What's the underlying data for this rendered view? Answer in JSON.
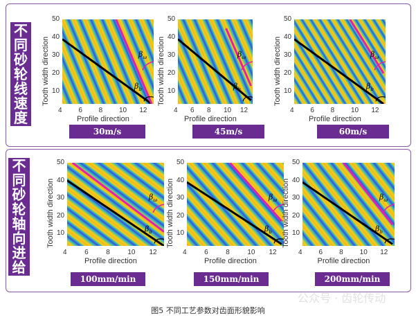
{
  "rows": [
    {
      "label": [
        "不",
        "同",
        "砂",
        "轮",
        "线",
        "速",
        "度"
      ],
      "plots": [
        {
          "condition": "30m/s",
          "black": [
            [
              4,
              39
            ],
            [
              12.8,
              3
            ]
          ],
          "magenta": [
            [
              9.3,
              50
            ],
            [
              12.8,
              3
            ]
          ]
        },
        {
          "condition": "45m/s",
          "black": [
            [
              4,
              39
            ],
            [
              12.8,
              5
            ]
          ],
          "magenta": [
            [
              9.8,
              45
            ],
            [
              12.8,
              13
            ]
          ]
        },
        {
          "condition": "60m/s",
          "black": [
            [
              4,
              39
            ],
            [
              12.8,
              3
            ]
          ],
          "magenta": [
            [
              9.5,
              50
            ],
            [
              12.8,
              20
            ]
          ]
        }
      ]
    },
    {
      "label": [
        "不",
        "同",
        "砂",
        "轮",
        "轴",
        "向",
        "进",
        "给"
      ],
      "plots": [
        {
          "condition": "100mm/min",
          "black": [
            [
              4,
              40
            ],
            [
              13,
              3
            ]
          ],
          "magenta": [
            [
              4.5,
              50
            ],
            [
              13,
              11
            ]
          ]
        },
        {
          "condition": "150mm/min",
          "black": [
            [
              4,
              39
            ],
            [
              12.8,
              4
            ]
          ],
          "magenta": [
            [
              8,
              50
            ],
            [
              12.8,
              17
            ]
          ]
        },
        {
          "condition": "200mm/min",
          "black": [
            [
              4,
              39
            ],
            [
              12.8,
              4
            ]
          ],
          "magenta": [
            [
              8,
              50
            ],
            [
              12.8,
              15
            ]
          ]
        }
      ]
    }
  ],
  "axes": {
    "xlabel": "Profile direction",
    "ylabel": "Tooth width direction",
    "xticks": [
      "4",
      "6",
      "8",
      "10",
      "12"
    ],
    "yticks": [
      "10",
      "20",
      "30",
      "40",
      "50"
    ],
    "xlim": [
      4,
      13
    ],
    "ylim": [
      3,
      50
    ]
  },
  "annotations": {
    "beta": "β",
    "sub_w": "ω",
    "sub_b": "b"
  },
  "colors": {
    "accent": "#6a2c91",
    "yellow": "#f4d20c",
    "cyan": "#2cb5c8",
    "blue": "#3b4fd6",
    "black_line": "#000000",
    "magenta_line": "#e020b0"
  },
  "caption": "图5 不同工艺参数对齿面形貌影响",
  "watermark": "公众号 · 齿轮传动"
}
